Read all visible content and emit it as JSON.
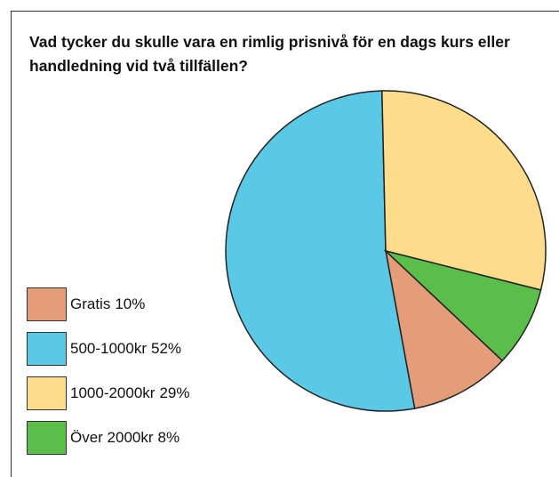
{
  "chart_data": {
    "type": "pie",
    "title": "Vad tycker du skulle vara en rimlig prisnivå för en dags kurs eller handledning vid två tillfällen?",
    "categories": [
      "Gratis",
      "500-1000kr",
      "1000-2000kr",
      "Över 2000kr"
    ],
    "values": [
      10,
      52,
      29,
      8
    ],
    "value_labels": [
      "10%",
      "52%",
      "29%",
      "8%"
    ],
    "colors": [
      "#e59c78",
      "#5bc8e6",
      "#fddc8c",
      "#5bbd4a"
    ],
    "legend": "left"
  }
}
